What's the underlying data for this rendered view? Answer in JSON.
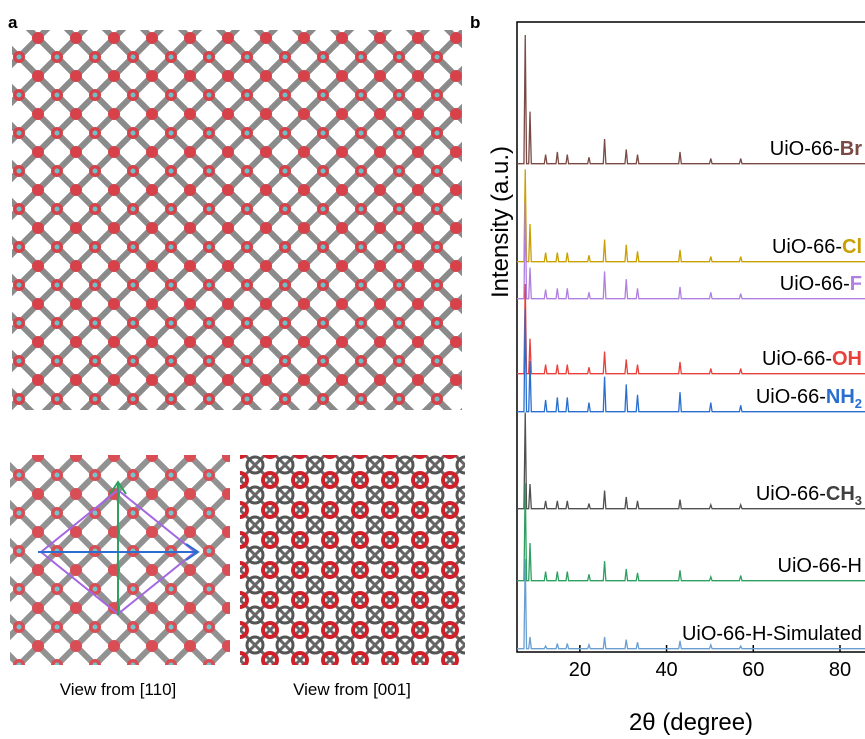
{
  "panel_labels": [
    "a",
    "b"
  ],
  "panel_a": {
    "captions": [
      "View from [110]",
      "View from [001]"
    ]
  },
  "chart_data": {
    "type": "line",
    "xlabel": "2θ (degree)",
    "ylabel": "Intensity (a.u.)",
    "xlim": [
      5.5,
      86
    ],
    "xticks": [
      20,
      40,
      60,
      80
    ],
    "ylim": [
      0,
      100
    ],
    "x": [
      5.5,
      7.1,
      7.4,
      7.7,
      8.2,
      8.5,
      8.8,
      11.8,
      12.1,
      12.4,
      14.5,
      14.8,
      15.1,
      16.8,
      17.1,
      17.4,
      21.8,
      22.1,
      22.4,
      25.4,
      25.7,
      26.0,
      30.4,
      30.7,
      31.0,
      33.0,
      33.3,
      33.6,
      42.8,
      43.1,
      43.4,
      49.9,
      50.2,
      50.5,
      56.8,
      57.1,
      57.4,
      86
    ],
    "series": [
      {
        "label": [
          "UiO-66-",
          "Br"
        ],
        "color": "#7a4a44",
        "label_color": "#7a4a44",
        "values": [
          1,
          1,
          100,
          1,
          1,
          41,
          1,
          1,
          8,
          1,
          1,
          10,
          1,
          1,
          8,
          1,
          1,
          6,
          1,
          1,
          20,
          1,
          1,
          12,
          1,
          1,
          8,
          1,
          1,
          10,
          1,
          1,
          5,
          1,
          1,
          5,
          1,
          1
        ]
      },
      {
        "label": [
          "UiO-66-",
          "Cl"
        ],
        "color": "#c9a000",
        "label_color": "#c9a000",
        "values": [
          1,
          1,
          72,
          1,
          1,
          30,
          1,
          1,
          8,
          1,
          1,
          8,
          1,
          1,
          8,
          1,
          1,
          6,
          1,
          1,
          18,
          1,
          1,
          14,
          1,
          1,
          9,
          1,
          1,
          10,
          1,
          1,
          5,
          1,
          1,
          5,
          1,
          1
        ]
      },
      {
        "label": [
          "UiO-66-",
          "F"
        ],
        "color": "#b07fe0",
        "label_color": "#b07fe0",
        "values": [
          1,
          1,
          75,
          1,
          1,
          25,
          1,
          1,
          8,
          1,
          1,
          9,
          1,
          1,
          9,
          1,
          1,
          6,
          1,
          1,
          22,
          1,
          1,
          16,
          1,
          1,
          9,
          1,
          1,
          10,
          1,
          1,
          6,
          1,
          1,
          5,
          1,
          1
        ]
      },
      {
        "label": [
          "UiO-66-",
          "OH"
        ],
        "color": "#e8403a",
        "label_color": "#e8403a",
        "values": [
          1,
          1,
          70,
          1,
          1,
          28,
          1,
          1,
          8,
          1,
          1,
          8,
          1,
          1,
          8,
          1,
          1,
          6,
          1,
          1,
          18,
          1,
          1,
          12,
          1,
          1,
          8,
          1,
          1,
          10,
          1,
          1,
          5,
          1,
          1,
          5,
          1,
          1
        ]
      },
      {
        "label": [
          "UiO-66-",
          "NH",
          "2"
        ],
        "color": "#2a6fd0",
        "label_color": "#2a6fd0",
        "values": [
          1,
          1,
          80,
          1,
          1,
          40,
          1,
          1,
          10,
          1,
          1,
          12,
          1,
          1,
          12,
          1,
          1,
          8,
          1,
          1,
          28,
          1,
          1,
          22,
          1,
          1,
          14,
          1,
          1,
          16,
          1,
          1,
          8,
          1,
          1,
          6,
          1,
          1
        ]
      },
      {
        "label": [
          "UiO-66-",
          "CH",
          "3"
        ],
        "color": "#505050",
        "label_color": "#404040",
        "values": [
          1,
          1,
          75,
          1,
          1,
          20,
          1,
          1,
          7,
          1,
          1,
          7,
          1,
          1,
          7,
          1,
          1,
          5,
          1,
          1,
          15,
          1,
          1,
          10,
          1,
          1,
          7,
          1,
          1,
          8,
          1,
          1,
          4,
          1,
          1,
          4,
          1,
          1
        ]
      },
      {
        "label": [
          "UiO-66-H"
        ],
        "color": "#2ea060",
        "label_color": "#000000",
        "values": [
          1,
          1,
          76,
          1,
          1,
          30,
          1,
          1,
          8,
          1,
          1,
          8,
          1,
          1,
          8,
          1,
          1,
          6,
          1,
          1,
          16,
          1,
          1,
          10,
          1,
          1,
          7,
          1,
          1,
          9,
          1,
          1,
          4,
          1,
          1,
          5,
          1,
          1
        ]
      },
      {
        "label": [
          "UiO-66-H-Simulated"
        ],
        "color": "#6a9fd0",
        "label_color": "#000000",
        "values": [
          1,
          1,
          70,
          1,
          1,
          10,
          1,
          1,
          3,
          1,
          1,
          5,
          1,
          1,
          5,
          1,
          1,
          4,
          1,
          1,
          10,
          1,
          1,
          8,
          1,
          1,
          6,
          1,
          1,
          7,
          1,
          1,
          4,
          1,
          1,
          3,
          1,
          1
        ]
      }
    ]
  }
}
